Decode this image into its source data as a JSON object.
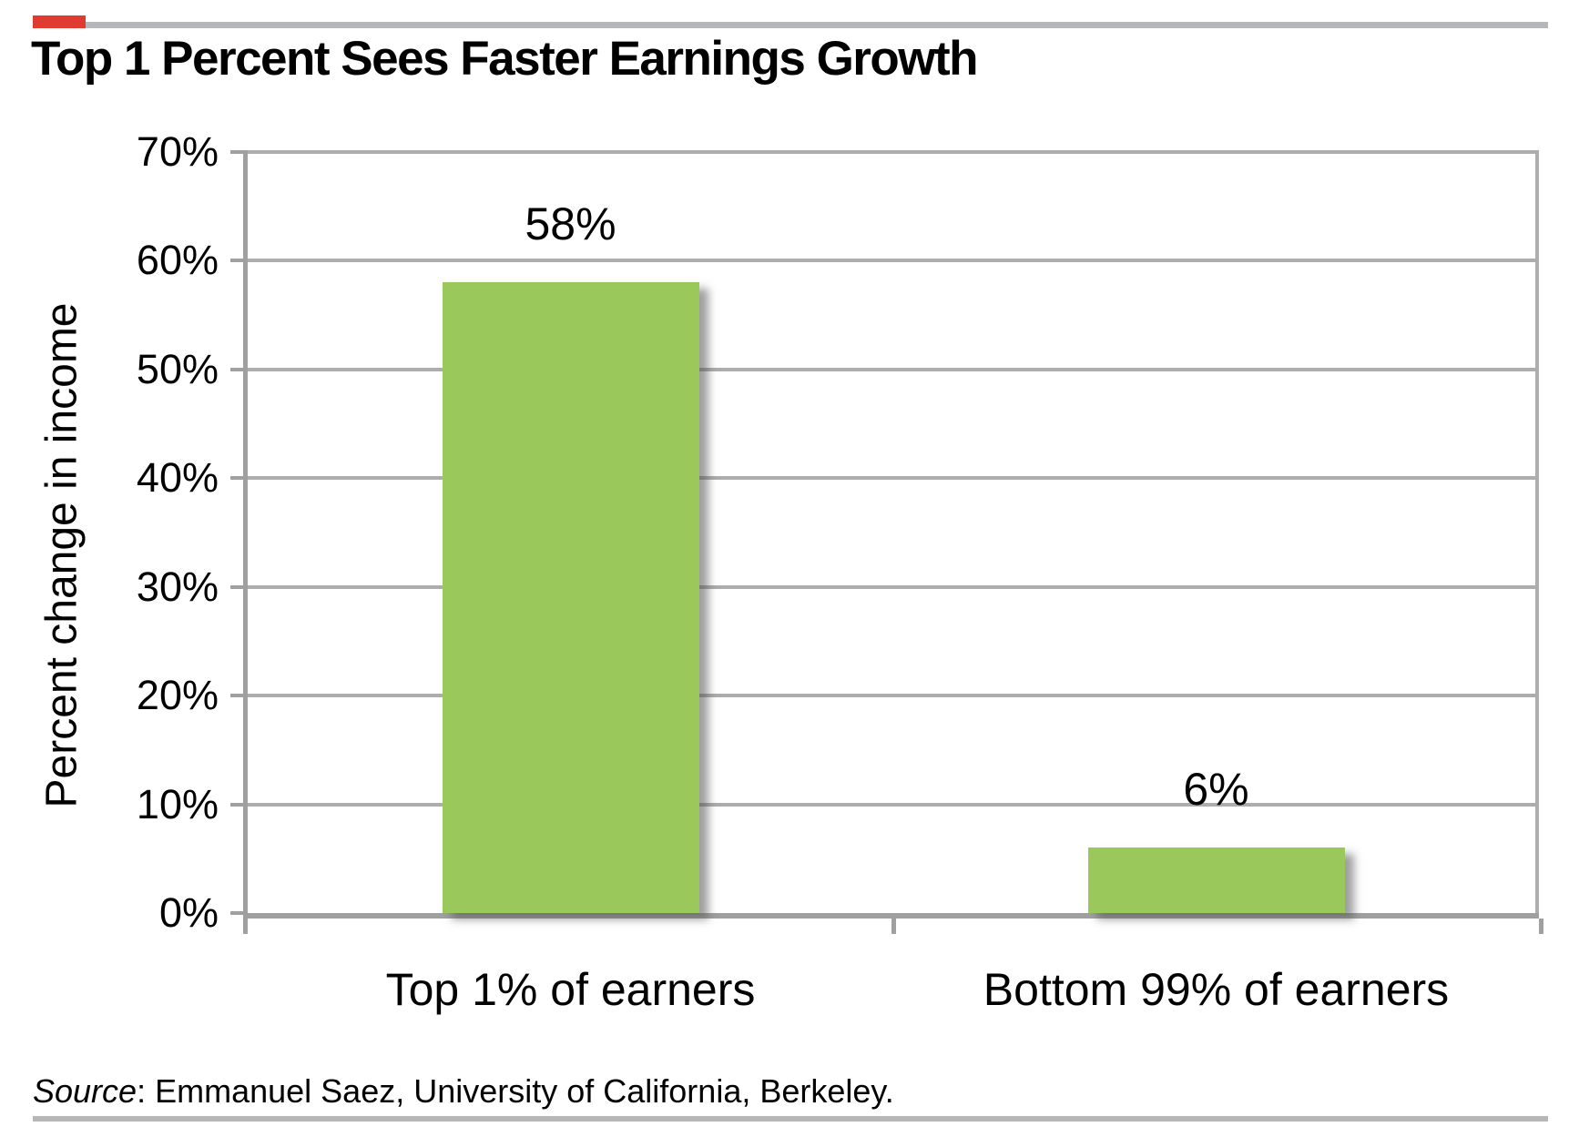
{
  "chart_data": {
    "type": "bar",
    "title": "Top 1 Percent Sees Faster Earnings Growth",
    "categories": [
      "Top 1% of earners",
      "Bottom 99% of earners"
    ],
    "values": [
      58,
      6
    ],
    "data_labels": [
      "58%",
      "6%"
    ],
    "ylabel": "Percent change in income",
    "xlabel": "",
    "ylim": [
      0,
      70
    ],
    "yticks": [
      0,
      10,
      20,
      30,
      40,
      50,
      60,
      70
    ],
    "ytick_labels": [
      "0%",
      "10%",
      "20%",
      "30%",
      "40%",
      "50%",
      "60%",
      "70%"
    ],
    "grid": true,
    "legend": false,
    "colors": {
      "bar": "#9bc85b",
      "grid": "#adadad",
      "axis": "#a0a0a0",
      "rule_gray": "#b5b7b9",
      "accent_red": "#e03b30",
      "text": "#000000"
    }
  },
  "source": {
    "prefix": "Source",
    "text": ": Emmanuel Saez, University of California, Berkeley."
  }
}
